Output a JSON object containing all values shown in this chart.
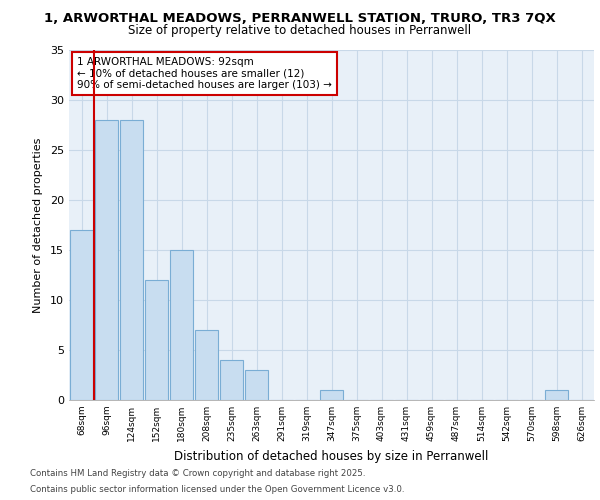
{
  "title_line1": "1, ARWORTHAL MEADOWS, PERRANWELL STATION, TRURO, TR3 7QX",
  "title_line2": "Size of property relative to detached houses in Perranwell",
  "xlabel": "Distribution of detached houses by size in Perranwell",
  "ylabel": "Number of detached properties",
  "categories": [
    "68sqm",
    "96sqm",
    "124sqm",
    "152sqm",
    "180sqm",
    "208sqm",
    "235sqm",
    "263sqm",
    "291sqm",
    "319sqm",
    "347sqm",
    "375sqm",
    "403sqm",
    "431sqm",
    "459sqm",
    "487sqm",
    "514sqm",
    "542sqm",
    "570sqm",
    "598sqm",
    "626sqm"
  ],
  "values": [
    17,
    28,
    28,
    12,
    15,
    7,
    4,
    3,
    0,
    0,
    1,
    0,
    0,
    0,
    0,
    0,
    0,
    0,
    0,
    1,
    0
  ],
  "bar_color": "#c8ddf0",
  "bar_edge_color": "#7aadd4",
  "property_line_color": "#cc0000",
  "property_line_x": 0.5,
  "ylim": [
    0,
    35
  ],
  "yticks": [
    0,
    5,
    10,
    15,
    20,
    25,
    30,
    35
  ],
  "fig_bg_color": "#ffffff",
  "plot_bg_color": "#e8f0f8",
  "grid_color": "#c8d8e8",
  "annotation_title": "1 ARWORTHAL MEADOWS: 92sqm",
  "annotation_line2": "← 10% of detached houses are smaller (12)",
  "annotation_line3": "90% of semi-detached houses are larger (103) →",
  "annotation_box_color": "#cc0000",
  "footnote_line1": "Contains HM Land Registry data © Crown copyright and database right 2025.",
  "footnote_line2": "Contains public sector information licensed under the Open Government Licence v3.0."
}
